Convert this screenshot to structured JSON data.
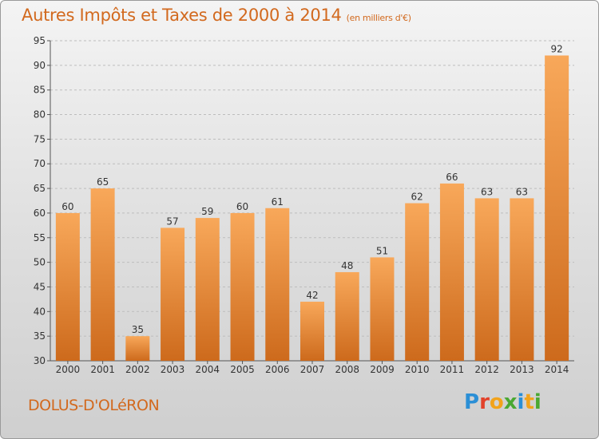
{
  "header": {
    "title": "Autres Impôts et Taxes de 2000 à 2014",
    "subtitle": "(en milliers d'€)"
  },
  "footer": {
    "commune": "DOLUS-D'OLéRON",
    "logo_text": "Proxiti"
  },
  "colors": {
    "title": "#d2691e",
    "bar_top": "#f8a85a",
    "bar_bottom": "#cd6a1c",
    "grid": "#bdbdbd"
  },
  "chart_data": {
    "type": "bar",
    "title": "Autres Impôts et Taxes de 2000 à 2014",
    "subtitle": "(en milliers d'€)",
    "categories": [
      "2000",
      "2001",
      "2002",
      "2003",
      "2004",
      "2005",
      "2006",
      "2007",
      "2008",
      "2009",
      "2010",
      "2011",
      "2012",
      "2013",
      "2014"
    ],
    "values": [
      60,
      65,
      35,
      57,
      59,
      60,
      61,
      42,
      48,
      51,
      62,
      66,
      63,
      63,
      92
    ],
    "ylim": [
      30,
      95
    ],
    "yticks": [
      30,
      35,
      40,
      45,
      50,
      55,
      60,
      65,
      70,
      75,
      80,
      85,
      90,
      95
    ],
    "grid": true,
    "legend": "none"
  }
}
